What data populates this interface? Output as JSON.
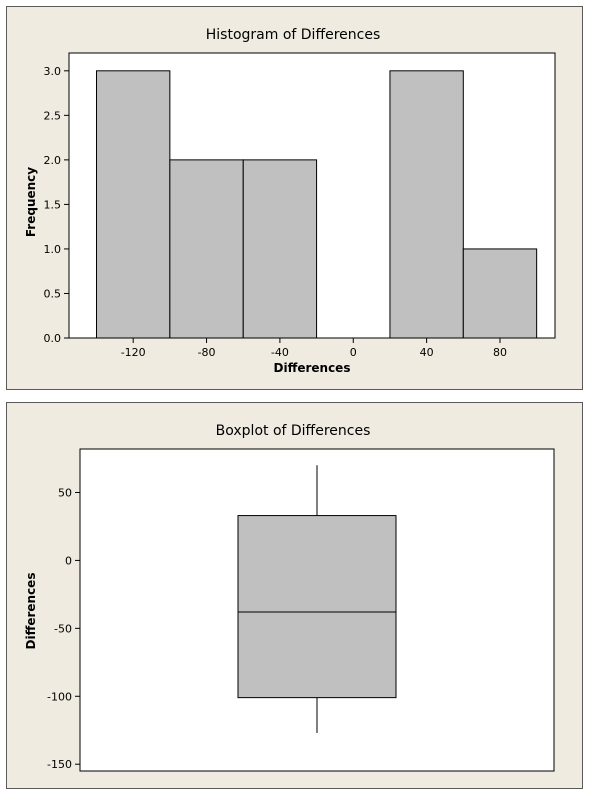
{
  "chart_data": [
    {
      "type": "bar",
      "chart_kind": "histogram",
      "title": "Histogram of Differences",
      "xlabel": "Differences",
      "ylabel": "Frequency",
      "bins": [
        {
          "start": -140,
          "end": -100,
          "count": 3
        },
        {
          "start": -100,
          "end": -60,
          "count": 2
        },
        {
          "start": -60,
          "end": -20,
          "count": 2
        },
        {
          "start": -20,
          "end": 20,
          "count": 0
        },
        {
          "start": 20,
          "end": 60,
          "count": 3
        },
        {
          "start": 60,
          "end": 100,
          "count": 1
        }
      ],
      "xticks": [
        -120,
        -80,
        -40,
        0,
        40,
        80
      ],
      "xtick_labels": [
        "-120",
        "-80",
        "-40",
        "0",
        "40",
        "80"
      ],
      "yticks": [
        0.0,
        0.5,
        1.0,
        1.5,
        2.0,
        2.5,
        3.0
      ],
      "ytick_labels": [
        "0.0",
        "0.5",
        "1.0",
        "1.5",
        "2.0",
        "2.5",
        "3.0"
      ],
      "xlim": [
        -155,
        110
      ],
      "ylim": [
        0,
        3.2
      ],
      "grid": false,
      "bar_color": "#c0c0c0"
    },
    {
      "type": "boxplot",
      "title": "Boxplot of Differences",
      "xlabel": "",
      "ylabel": "Differences",
      "whisker_low": -127,
      "q1": -101,
      "median": -38,
      "q3": 33,
      "whisker_high": 70,
      "yticks": [
        -150,
        -100,
        -50,
        0,
        50
      ],
      "ytick_labels": [
        "-150",
        "-100",
        "-50",
        "0",
        "50"
      ],
      "ylim": [
        -155,
        82
      ],
      "grid": false,
      "box_color": "#c0c0c0"
    }
  ]
}
